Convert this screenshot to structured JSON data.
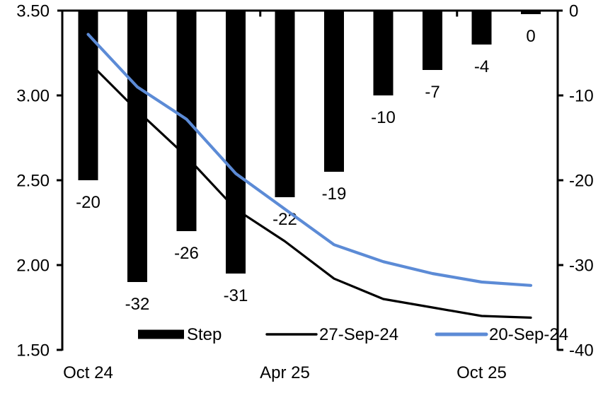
{
  "chart_data": {
    "type": "combo",
    "title": "",
    "meetings_count": 10,
    "x_axis": {
      "tick_labels": [
        {
          "label": "Oct 24",
          "index": 0
        },
        {
          "label": "Apr 25",
          "index": 4
        },
        {
          "label": "Oct 25",
          "index": 8
        }
      ]
    },
    "left_axis": {
      "min": 1.5,
      "max": 3.5,
      "tick_labels": [
        "3.50",
        "3.00",
        "2.50",
        "2.00",
        "1.50"
      ]
    },
    "right_axis": {
      "min": -40,
      "max": 0,
      "tick_labels": [
        "0",
        "-10",
        "-20",
        "-30",
        "-40"
      ]
    },
    "series": [
      {
        "name": "Step",
        "type": "bar",
        "axis": "right",
        "color": "#000000",
        "values": [
          -20,
          -32,
          -26,
          -31,
          -22,
          -19,
          -10,
          -7,
          -4,
          0
        ],
        "data_labels": [
          "-20",
          "-32",
          "-26",
          "-31",
          "-22",
          "-19",
          "-10",
          "-7",
          "-4",
          "0"
        ]
      },
      {
        "name": "27-Sep-24",
        "type": "line",
        "axis": "left",
        "color": "#000000",
        "values": [
          3.2,
          2.91,
          2.64,
          2.33,
          2.14,
          1.92,
          1.8,
          1.75,
          1.7,
          1.69
        ]
      },
      {
        "name": "20-Sep-24",
        "type": "line",
        "axis": "left",
        "color": "#5C8BD6",
        "values": [
          3.36,
          3.05,
          2.86,
          2.54,
          2.33,
          2.12,
          2.02,
          1.95,
          1.9,
          1.88
        ]
      }
    ],
    "legend": {
      "position": "bottom",
      "items": [
        {
          "label": "Step",
          "swatch": "bar",
          "color": "#000000"
        },
        {
          "label": "27-Sep-24",
          "swatch": "line",
          "color": "#000000"
        },
        {
          "label": "20-Sep-24",
          "swatch": "line",
          "color": "#5C8BD6"
        }
      ]
    },
    "grid": "off"
  }
}
